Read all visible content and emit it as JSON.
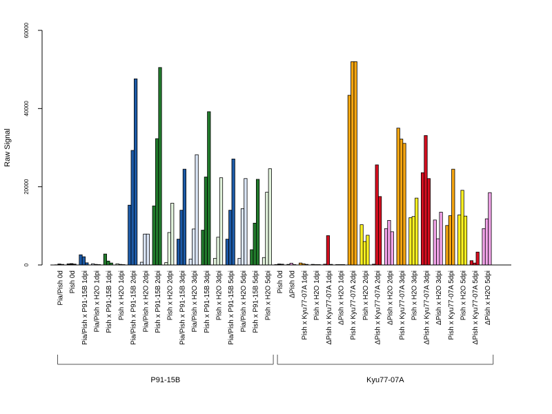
{
  "chart_data": {
    "type": "bar",
    "ylabel": "Raw Signal",
    "ylim": [
      0,
      60000
    ],
    "yticks": [
      0,
      20000,
      40000,
      60000
    ],
    "legend": "none",
    "grid": false,
    "colors": {
      "black": "#000000",
      "dark_blue": "#1d5aa6",
      "light_blue": "#dbe6f7",
      "dark_green": "#217a2c",
      "light_green": "#e2f3dc",
      "dark_orange": "#f5a511",
      "yellow": "#fff221",
      "red": "#d40f20",
      "pink": "#f1a3e8"
    },
    "categories": [
      {
        "label": "Pia/Pish 0d",
        "color": "black",
        "values": [
          50,
          250,
          150
        ]
      },
      {
        "label": "Pish 0d",
        "color": "black",
        "values": [
          280,
          350,
          220
        ]
      },
      {
        "label": "Pia/Pish x P91-15B 1dpi",
        "color": "dark_blue",
        "values": [
          2600,
          2100,
          550
        ]
      },
      {
        "label": "Pia/Pish x H2O 1dpi",
        "color": "light_blue",
        "values": [
          300,
          150,
          100
        ]
      },
      {
        "label": "Pish x P91-15B 1dpi",
        "color": "dark_green",
        "values": [
          2800,
          1000,
          500
        ]
      },
      {
        "label": "Pish x H2O 1dpi",
        "color": "light_green",
        "values": [
          300,
          150,
          100
        ]
      },
      {
        "label": "Pia/Pish x P91-15B 2dpi",
        "color": "dark_blue",
        "values": [
          15300,
          29300,
          47600
        ]
      },
      {
        "label": "Pia/Pish x H2O 2dpi",
        "color": "light_blue",
        "values": [
          700,
          7900,
          7900
        ]
      },
      {
        "label": "Pish x P91-15B 2dpi",
        "color": "dark_green",
        "values": [
          15100,
          32300,
          50500
        ]
      },
      {
        "label": "Pish x H2O 2dpi",
        "color": "light_green",
        "values": [
          600,
          8300,
          15800
        ]
      },
      {
        "label": "Pia/Pish x P91-15B 3dpi",
        "color": "dark_blue",
        "values": [
          6600,
          14000,
          24500
        ]
      },
      {
        "label": "Pia/Pish x H2O 3dpi",
        "color": "light_blue",
        "values": [
          1500,
          9200,
          28200
        ]
      },
      {
        "label": "Pish x P91-15B 3dpi",
        "color": "dark_green",
        "values": [
          8900,
          22500,
          39200
        ]
      },
      {
        "label": "Pish x H2O 3dpi",
        "color": "light_green",
        "values": [
          1700,
          7100,
          22300
        ]
      },
      {
        "label": "Pia/Pish x P91-15B 5dpi",
        "color": "dark_blue",
        "values": [
          6600,
          14000,
          27100
        ]
      },
      {
        "label": "Pia/Pish x H2O 5dpi",
        "color": "light_blue",
        "values": [
          1700,
          14400,
          22100
        ]
      },
      {
        "label": "Pish x P91-15B 5dpi",
        "color": "dark_green",
        "values": [
          3900,
          10700,
          21900
        ]
      },
      {
        "label": "Pish x H2O 5dpi",
        "color": "light_green",
        "values": [
          1900,
          18600,
          24600
        ]
      },
      {
        "label": "Pish 0d",
        "color": "black",
        "values": [
          100,
          250,
          200
        ]
      },
      {
        "label": "ΔPish 0d",
        "color": "pink",
        "values": [
          150,
          450,
          100
        ]
      },
      {
        "label": "Pish x Kyu77-07A 1dpi",
        "color": "dark_orange",
        "values": [
          500,
          300,
          150
        ]
      },
      {
        "label": "Pish x H2O 1dpi",
        "color": "yellow",
        "values": [
          150,
          100,
          100
        ]
      },
      {
        "label": "ΔPish x Kyu77-07A 1dpi",
        "color": "red",
        "values": [
          200,
          7500,
          150
        ]
      },
      {
        "label": "ΔPish x H2O 1dpi",
        "color": "pink",
        "values": [
          100,
          100,
          100
        ]
      },
      {
        "label": "Pish x Kyu77-07A 2dpi",
        "color": "dark_orange",
        "values": [
          43400,
          52000,
          52000
        ]
      },
      {
        "label": "Pish x H2O 2dpi",
        "color": "yellow",
        "values": [
          10300,
          6000,
          7600
        ]
      },
      {
        "label": "ΔPish x Kyu77-07A 2dpi",
        "color": "red",
        "values": [
          200,
          25600,
          17500
        ]
      },
      {
        "label": "ΔPish x H2O 2dpi",
        "color": "pink",
        "values": [
          9300,
          11400,
          8500
        ]
      },
      {
        "label": "Pish x Kyu77-07A 3dpi",
        "color": "dark_orange",
        "values": [
          35000,
          32200,
          31100
        ]
      },
      {
        "label": "Pish x H2O 3dpi",
        "color": "yellow",
        "values": [
          12100,
          12400,
          17100
        ]
      },
      {
        "label": "ΔPish x Kyu77-07A 3dpi",
        "color": "red",
        "values": [
          23600,
          33100,
          22100
        ]
      },
      {
        "label": "ΔPish x H2O 3dpi",
        "color": "pink",
        "values": [
          11500,
          6700,
          13500
        ]
      },
      {
        "label": "Pish x Kyu77-07A 5dpi",
        "color": "dark_orange",
        "values": [
          10100,
          12600,
          24500
        ]
      },
      {
        "label": "Pish x H2O 5dpi",
        "color": "yellow",
        "values": [
          12800,
          19100,
          12500
        ]
      },
      {
        "label": "ΔPish x Kyu77-07A 5dpi",
        "color": "red",
        "values": [
          1100,
          500,
          3300
        ]
      },
      {
        "label": "ΔPish x H2O 5dpi",
        "color": "pink",
        "values": [
          9300,
          11800,
          18500
        ]
      }
    ],
    "groups": [
      {
        "label": "P91-15B",
        "from": 0,
        "to": 17
      },
      {
        "label": "Kyu77-07A",
        "from": 18,
        "to": 35
      }
    ]
  }
}
